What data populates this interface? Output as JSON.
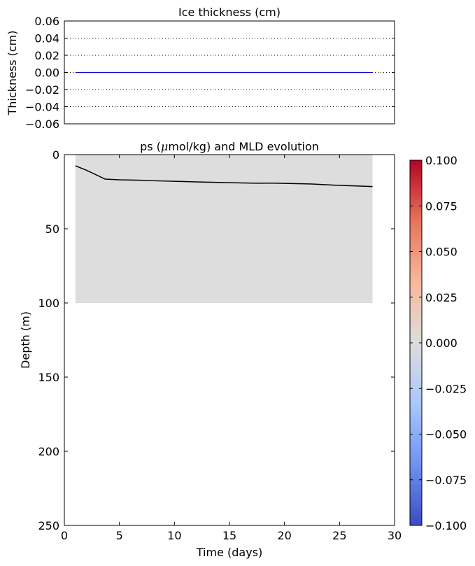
{
  "chart_data": [
    {
      "type": "line",
      "title": "Ice thickness (cm)",
      "xlabel": "",
      "ylabel": "Thickness (cm)",
      "xlim": [
        0,
        30
      ],
      "ylim": [
        -0.06,
        0.06
      ],
      "yticks": [
        "0.06",
        "0.04",
        "0.02",
        "0.00",
        "−0.02",
        "−0.04",
        "−0.06"
      ],
      "ytick_values": [
        0.06,
        0.04,
        0.02,
        0.0,
        -0.02,
        -0.04,
        -0.06
      ],
      "grid": "horizontal dotted",
      "series": [
        {
          "color": "#0000cc",
          "x": [
            1,
            28
          ],
          "y": [
            0,
            0
          ]
        }
      ]
    },
    {
      "type": "heatmap",
      "title": "ps (μmol/kg) and MLD evolution",
      "xlabel": "Time (days)",
      "ylabel": "Depth (m)",
      "xlim": [
        0,
        30
      ],
      "ylim": [
        250,
        0
      ],
      "xticks": [
        "0",
        "5",
        "10",
        "15",
        "20",
        "25",
        "30"
      ],
      "xtick_values": [
        0,
        5,
        10,
        15,
        20,
        25,
        30
      ],
      "yticks": [
        "0",
        "50",
        "100",
        "150",
        "200",
        "250"
      ],
      "ytick_values": [
        0,
        50,
        100,
        150,
        200,
        250
      ],
      "field": {
        "x_range": [
          1,
          28
        ],
        "depth_range": [
          0,
          100
        ],
        "value": 0.0,
        "color": "#dddddd"
      },
      "series": [
        {
          "color": "#000000",
          "x": [
            1,
            2,
            3,
            3.7,
            5,
            7,
            8,
            10,
            12,
            15,
            17.5,
            19,
            22.5,
            24.5,
            26,
            28
          ],
          "y": [
            7.5,
            10.5,
            14,
            16.5,
            17,
            17.3,
            17.6,
            18,
            18.4,
            18.9,
            19.3,
            19.2,
            19.8,
            20.6,
            21,
            21.5
          ]
        }
      ]
    }
  ],
  "colorbar": {
    "ticks": [
      "0.100",
      "0.075",
      "0.050",
      "0.025",
      "0.000",
      "−0.025",
      "−0.050",
      "−0.075",
      "−0.100"
    ],
    "tick_values": [
      0.1,
      0.075,
      0.05,
      0.025,
      0.0,
      -0.025,
      -0.05,
      -0.075,
      -0.1
    ],
    "range": [
      -0.1,
      0.1
    ],
    "colormap": "coolwarm",
    "colors": [
      "#3b4cc0",
      "#6f92f3",
      "#aac7fd",
      "#dddddd",
      "#f7b89c",
      "#e7745b",
      "#b40426"
    ]
  }
}
